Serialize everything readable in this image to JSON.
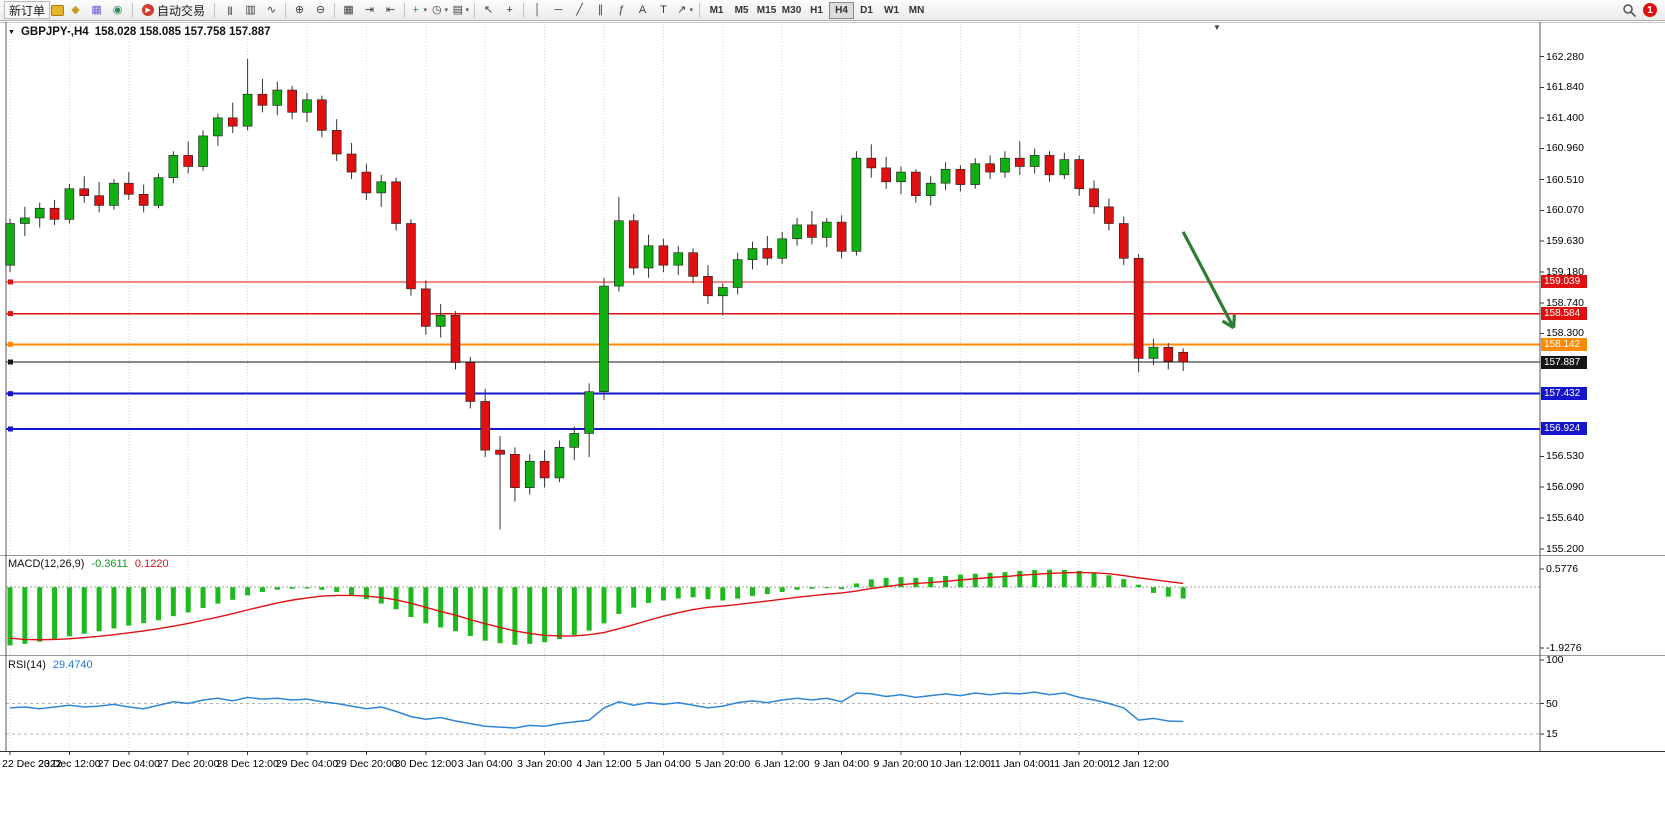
{
  "colors": {
    "up": "#0fb00f",
    "down": "#e01010",
    "wick": "#333333",
    "candle_border": "#1a1a1a",
    "grid": "#d6d6d6",
    "macd_hist": "#1db91d",
    "macd_signal": "#e01010",
    "rsi_line": "#2f86d6",
    "arrow": "#2e7d32",
    "axis_text": "#000000"
  },
  "toolbar": {
    "new_order_label": "新订单",
    "autotrading_label": "自动交易",
    "notification_badge": "1",
    "timeframes": [
      "M1",
      "M5",
      "M15",
      "M30",
      "H1",
      "H4",
      "D1",
      "W1",
      "MN"
    ],
    "active_timeframe": "H4",
    "groups": [
      {
        "items": [
          {
            "n": "mql5-icon",
            "g": "◆",
            "c": "#c79a1e"
          },
          {
            "n": "charts-window-icon",
            "g": "▦",
            "c": "#6a5acd"
          },
          {
            "n": "community-icon",
            "g": "◉",
            "c": "#2e8b57"
          }
        ]
      },
      {
        "items": [
          {
            "n": "bars-chart-icon",
            "g": "|||"
          },
          {
            "n": "candlestick-chart-icon",
            "g": "▥"
          },
          {
            "n": "line-chart-icon",
            "g": "∿"
          }
        ]
      },
      {
        "items": [
          {
            "n": "zoom-in-icon",
            "g": "⊕"
          },
          {
            "n": "zoom-out-icon",
            "g": "⊖"
          }
        ]
      },
      {
        "items": [
          {
            "n": "tile-windows-icon",
            "g": "▦"
          },
          {
            "n": "auto-scroll-icon",
            "g": "⇥"
          },
          {
            "n": "chart-shift-icon",
            "g": "⇤"
          }
        ]
      },
      {
        "items": [
          {
            "n": "indicators-icon",
            "g": "+",
            "c": "#149914",
            "caret": true
          },
          {
            "n": "periods-icon",
            "g": "◷",
            "caret": true
          },
          {
            "n": "templates-icon",
            "g": "▤",
            "caret": true
          }
        ]
      },
      {
        "items": [
          {
            "n": "cursor-icon",
            "g": "↖"
          },
          {
            "n": "crosshair-icon",
            "g": "+"
          }
        ]
      },
      {
        "items": [
          {
            "n": "vertical-line-icon",
            "g": "│"
          },
          {
            "n": "horizontal-line-icon",
            "g": "─"
          },
          {
            "n": "trendline-icon",
            "g": "╱"
          },
          {
            "n": "channel-icon",
            "g": "∥"
          },
          {
            "n": "fibonacci-icon",
            "g": "ƒ"
          },
          {
            "n": "text-icon",
            "g": "A"
          },
          {
            "n": "label-icon",
            "g": "T"
          },
          {
            "n": "arrows-icon",
            "g": "↗",
            "caret": true
          }
        ]
      }
    ]
  },
  "chart": {
    "title_symbol": "GBPJPY-,H4",
    "title_ohlc": "158.028 158.085 157.758 157.887",
    "icons": {
      "window_menu": "▼",
      "shift_marker": "▼"
    }
  },
  "indicators": {
    "macd": {
      "label": "MACD(12,26,9)",
      "main_value": "-0.3611",
      "signal_value": "0.1220"
    },
    "rsi": {
      "label": "RSI(14)",
      "value": "29.4740"
    }
  },
  "chart_data": {
    "type": "candlestick",
    "symbol": "GBPJPY-",
    "timeframe": "H4",
    "ylim": [
      155.14,
      162.75
    ],
    "bars_per_label": 4,
    "time_labels": [
      "22 Dec 2022",
      "23 Dec 12:00",
      "27 Dec 04:00",
      "27 Dec 20:00",
      "28 Dec 12:00",
      "29 Dec 04:00",
      "29 Dec 20:00",
      "30 Dec 12:00",
      "3 Jan 04:00",
      "3 Jan 20:00",
      "4 Jan 12:00",
      "5 Jan 04:00",
      "5 Jan 20:00",
      "6 Jan 12:00",
      "9 Jan 04:00",
      "9 Jan 20:00",
      "10 Jan 12:00",
      "11 Jan 04:00",
      "11 Jan 20:00",
      "12 Jan 12:00"
    ],
    "price_axis_labels": [
      162.28,
      161.84,
      161.4,
      160.96,
      160.51,
      160.07,
      159.63,
      159.18,
      158.74,
      158.3,
      156.53,
      156.09,
      155.64,
      155.2
    ],
    "hlines": [
      {
        "price": 159.039,
        "color": "#e01010",
        "w": 1.4,
        "tag": "159.039"
      },
      {
        "price": 158.584,
        "color": "#e01010",
        "w": 1.4,
        "tag": "158.584"
      },
      {
        "price": 158.142,
        "color": "#ff8a00",
        "w": 2,
        "tag": "158.142"
      },
      {
        "price": 157.887,
        "color": "#151515",
        "w": 1.2,
        "tag": "157.887"
      },
      {
        "price": 157.432,
        "color": "#1414cc",
        "w": 2,
        "tag": "157.432"
      },
      {
        "price": 156.924,
        "color": "#1414cc",
        "w": 2,
        "tag": "156.924"
      }
    ],
    "arrow": {
      "x1_bar": 79,
      "price1": 159.76,
      "x2_bar": 82.4,
      "price2": 158.38,
      "color": "#2e7d32"
    },
    "candles_ohlc": [
      [
        159.28,
        159.95,
        159.18,
        159.88
      ],
      [
        159.88,
        160.12,
        159.7,
        159.96
      ],
      [
        159.96,
        160.18,
        159.82,
        160.1
      ],
      [
        160.1,
        160.22,
        159.86,
        159.94
      ],
      [
        159.94,
        160.45,
        159.88,
        160.38
      ],
      [
        160.38,
        160.56,
        160.18,
        160.28
      ],
      [
        160.28,
        160.48,
        160.04,
        160.14
      ],
      [
        160.14,
        160.52,
        160.08,
        160.46
      ],
      [
        160.46,
        160.62,
        160.22,
        160.3
      ],
      [
        160.3,
        160.44,
        160.04,
        160.14
      ],
      [
        160.14,
        160.6,
        160.1,
        160.54
      ],
      [
        160.54,
        160.92,
        160.46,
        160.86
      ],
      [
        160.86,
        161.06,
        160.6,
        160.7
      ],
      [
        160.7,
        161.22,
        160.64,
        161.14
      ],
      [
        161.14,
        161.46,
        161.0,
        161.4
      ],
      [
        161.4,
        161.62,
        161.18,
        161.28
      ],
      [
        161.28,
        162.25,
        161.22,
        161.74
      ],
      [
        161.74,
        161.96,
        161.48,
        161.58
      ],
      [
        161.58,
        161.92,
        161.44,
        161.8
      ],
      [
        161.8,
        161.86,
        161.38,
        161.48
      ],
      [
        161.48,
        161.76,
        161.34,
        161.66
      ],
      [
        161.66,
        161.72,
        161.12,
        161.22
      ],
      [
        161.22,
        161.38,
        160.78,
        160.88
      ],
      [
        160.88,
        161.04,
        160.52,
        160.62
      ],
      [
        160.62,
        160.74,
        160.22,
        160.32
      ],
      [
        160.32,
        160.58,
        160.12,
        160.48
      ],
      [
        160.48,
        160.54,
        159.78,
        159.88
      ],
      [
        159.88,
        159.94,
        158.84,
        158.94
      ],
      [
        158.94,
        159.06,
        158.28,
        158.4
      ],
      [
        158.4,
        158.72,
        158.24,
        158.56
      ],
      [
        158.56,
        158.62,
        157.78,
        157.88
      ],
      [
        157.88,
        157.96,
        157.22,
        157.32
      ],
      [
        157.32,
        157.5,
        156.52,
        156.62
      ],
      [
        156.62,
        156.82,
        155.48,
        156.56
      ],
      [
        156.56,
        156.66,
        155.88,
        156.08
      ],
      [
        156.08,
        156.56,
        155.98,
        156.46
      ],
      [
        156.46,
        156.62,
        156.08,
        156.22
      ],
      [
        156.22,
        156.76,
        156.16,
        156.66
      ],
      [
        156.66,
        156.96,
        156.48,
        156.86
      ],
      [
        156.86,
        157.58,
        156.52,
        157.46
      ],
      [
        157.46,
        159.1,
        157.34,
        158.98
      ],
      [
        158.98,
        160.26,
        158.9,
        159.92
      ],
      [
        159.92,
        160.02,
        159.14,
        159.24
      ],
      [
        159.24,
        159.72,
        159.1,
        159.56
      ],
      [
        159.56,
        159.66,
        159.18,
        159.28
      ],
      [
        159.28,
        159.56,
        159.14,
        159.46
      ],
      [
        159.46,
        159.52,
        159.02,
        159.12
      ],
      [
        159.12,
        159.28,
        158.72,
        158.84
      ],
      [
        158.84,
        159.02,
        158.56,
        158.96
      ],
      [
        158.96,
        159.46,
        158.86,
        159.36
      ],
      [
        159.36,
        159.62,
        159.22,
        159.52
      ],
      [
        159.52,
        159.7,
        159.28,
        159.38
      ],
      [
        159.38,
        159.76,
        159.3,
        159.66
      ],
      [
        159.66,
        159.96,
        159.56,
        159.86
      ],
      [
        159.86,
        160.06,
        159.58,
        159.68
      ],
      [
        159.68,
        159.96,
        159.54,
        159.9
      ],
      [
        159.9,
        160.0,
        159.38,
        159.48
      ],
      [
        159.48,
        160.92,
        159.42,
        160.82
      ],
      [
        160.82,
        161.02,
        160.54,
        160.68
      ],
      [
        160.68,
        160.84,
        160.38,
        160.48
      ],
      [
        160.48,
        160.7,
        160.3,
        160.62
      ],
      [
        160.62,
        160.66,
        160.18,
        160.28
      ],
      [
        160.28,
        160.56,
        160.14,
        160.46
      ],
      [
        160.46,
        160.76,
        160.36,
        160.66
      ],
      [
        160.66,
        160.72,
        160.34,
        160.44
      ],
      [
        160.44,
        160.82,
        160.38,
        160.74
      ],
      [
        160.74,
        160.86,
        160.52,
        160.62
      ],
      [
        160.62,
        160.92,
        160.54,
        160.82
      ],
      [
        160.82,
        161.06,
        160.58,
        160.7
      ],
      [
        160.7,
        160.96,
        160.6,
        160.86
      ],
      [
        160.86,
        160.92,
        160.48,
        160.58
      ],
      [
        160.58,
        160.9,
        160.52,
        160.8
      ],
      [
        160.8,
        160.86,
        160.28,
        160.38
      ],
      [
        160.38,
        160.5,
        160.02,
        160.12
      ],
      [
        160.12,
        160.24,
        159.78,
        159.88
      ],
      [
        159.88,
        159.98,
        159.28,
        159.38
      ],
      [
        159.38,
        159.44,
        157.74,
        157.94
      ],
      [
        157.94,
        158.22,
        157.84,
        158.1
      ],
      [
        158.1,
        158.16,
        157.78,
        157.9
      ],
      [
        158.028,
        158.085,
        157.758,
        157.887
      ]
    ],
    "macd": {
      "ylim": [
        -2.06,
        0.93
      ],
      "axis_labels": [
        0.5776,
        -1.9276
      ],
      "main": [
        -1.85,
        -1.8,
        -1.73,
        -1.66,
        -1.56,
        -1.48,
        -1.4,
        -1.31,
        -1.22,
        -1.14,
        -1.05,
        -0.92,
        -0.8,
        -0.66,
        -0.52,
        -0.4,
        -0.26,
        -0.15,
        -0.08,
        -0.05,
        -0.04,
        -0.08,
        -0.15,
        -0.25,
        -0.38,
        -0.52,
        -0.7,
        -0.95,
        -1.15,
        -1.28,
        -1.4,
        -1.55,
        -1.7,
        -1.78,
        -1.83,
        -1.8,
        -1.75,
        -1.65,
        -1.52,
        -1.38,
        -1.15,
        -0.85,
        -0.65,
        -0.5,
        -0.42,
        -0.36,
        -0.32,
        -0.38,
        -0.42,
        -0.36,
        -0.28,
        -0.22,
        -0.15,
        -0.08,
        -0.05,
        -0.02,
        -0.06,
        0.12,
        0.25,
        0.3,
        0.32,
        0.3,
        0.32,
        0.36,
        0.4,
        0.43,
        0.46,
        0.48,
        0.52,
        0.55,
        0.56,
        0.55,
        0.52,
        0.46,
        0.38,
        0.26,
        0.08,
        -0.18,
        -0.3,
        -0.3611
      ],
      "signal": [
        -1.62,
        -1.66,
        -1.67,
        -1.66,
        -1.64,
        -1.6,
        -1.56,
        -1.51,
        -1.45,
        -1.39,
        -1.32,
        -1.24,
        -1.15,
        -1.05,
        -0.95,
        -0.84,
        -0.72,
        -0.61,
        -0.5,
        -0.41,
        -0.34,
        -0.28,
        -0.26,
        -0.26,
        -0.28,
        -0.33,
        -0.4,
        -0.51,
        -0.64,
        -0.77,
        -0.89,
        -1.03,
        -1.16,
        -1.28,
        -1.39,
        -1.47,
        -1.53,
        -1.55,
        -1.55,
        -1.51,
        -1.44,
        -1.32,
        -1.19,
        -1.05,
        -0.92,
        -0.81,
        -0.71,
        -0.64,
        -0.6,
        -0.55,
        -0.49,
        -0.44,
        -0.38,
        -0.32,
        -0.27,
        -0.22,
        -0.18,
        -0.12,
        -0.04,
        0.02,
        0.08,
        0.12,
        0.15,
        0.19,
        0.23,
        0.27,
        0.31,
        0.34,
        0.38,
        0.41,
        0.44,
        0.46,
        0.47,
        0.46,
        0.43,
        0.37,
        0.3,
        0.24,
        0.18,
        0.122
      ]
    },
    "rsi": {
      "ylim": [
        -2,
        102
      ],
      "axis_labels": [
        100,
        50,
        15
      ],
      "levels": [
        50,
        15
      ],
      "values": [
        45,
        46,
        44,
        46,
        48,
        46,
        47,
        49,
        46,
        44,
        48,
        52,
        50,
        54,
        56,
        53,
        57,
        55,
        56,
        54,
        55,
        52,
        50,
        47,
        44,
        46,
        41,
        35,
        32,
        34,
        30,
        27,
        24,
        23,
        22,
        25,
        24,
        27,
        29,
        31,
        45,
        52,
        48,
        51,
        49,
        51,
        48,
        45,
        47,
        51,
        53,
        51,
        54,
        56,
        54,
        56,
        52,
        62,
        61,
        58,
        60,
        57,
        59,
        61,
        59,
        62,
        60,
        62,
        61,
        63,
        60,
        62,
        57,
        54,
        50,
        45,
        31,
        33,
        30,
        29.474
      ]
    }
  }
}
